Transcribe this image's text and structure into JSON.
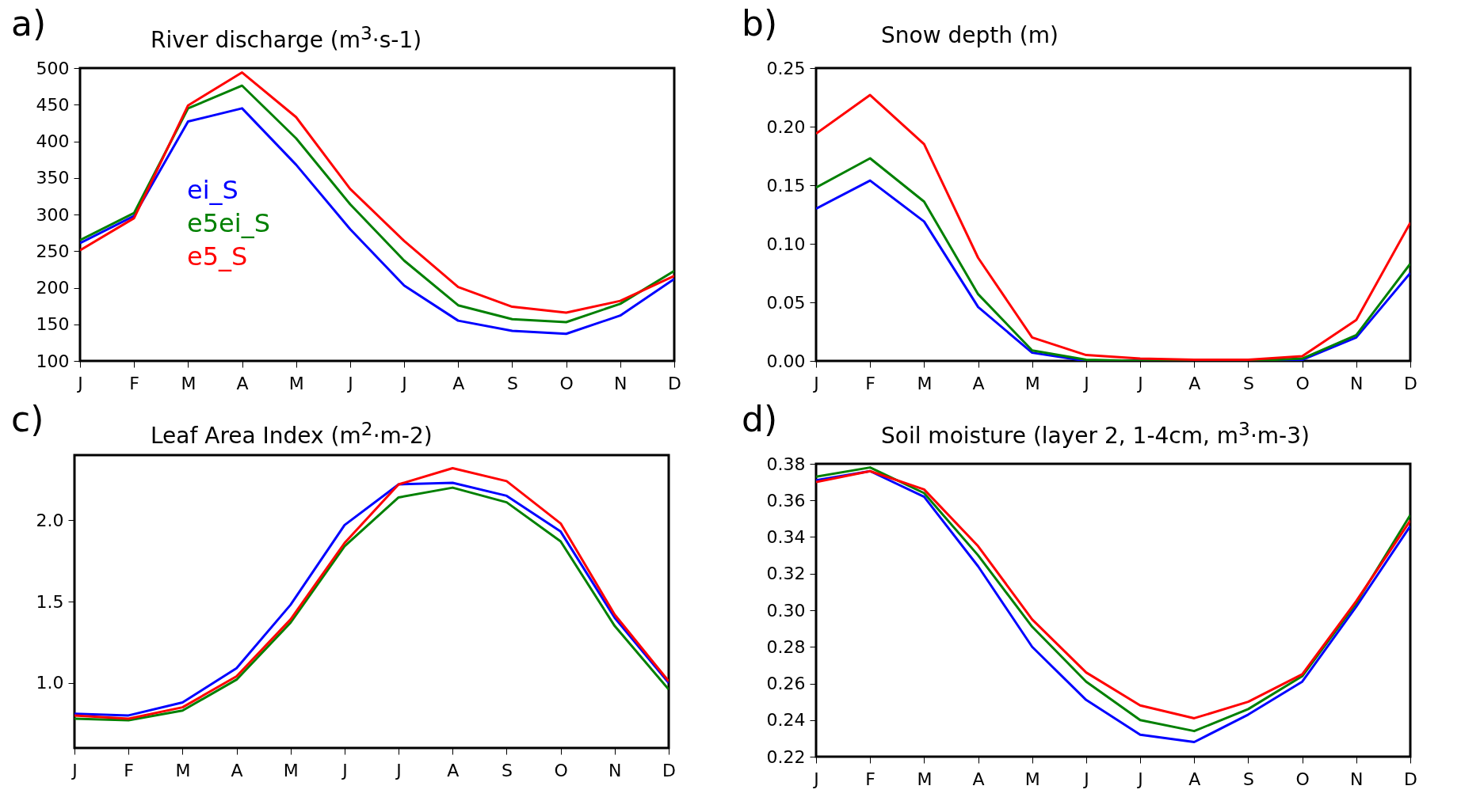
{
  "chart_data": [
    {
      "type": "line",
      "title": "River discharge (m$^{3}$·s-1)",
      "annotations": [
        "a)"
      ],
      "categories": [
        "J",
        "F",
        "M",
        "A",
        "M",
        "J",
        "J",
        "A",
        "S",
        "O",
        "N",
        "D"
      ],
      "ylim": [
        100,
        500
      ],
      "yticks": [
        100,
        150,
        200,
        250,
        300,
        350,
        400,
        450,
        500
      ],
      "legend": "left",
      "grid": false,
      "series": [
        {
          "name": "ei_S",
          "color": "#0000ff",
          "values": [
            261,
            298,
            427,
            445,
            368,
            280,
            203,
            155,
            141,
            137,
            162,
            212
          ]
        },
        {
          "name": "e5ei_S",
          "color": "#008000",
          "values": [
            265,
            302,
            445,
            476,
            404,
            314,
            237,
            176,
            157,
            153,
            178,
            223
          ]
        },
        {
          "name": "e5_S",
          "color": "#ff0000",
          "values": [
            251,
            295,
            449,
            494,
            433,
            335,
            264,
            201,
            174,
            166,
            182,
            216
          ]
        }
      ]
    },
    {
      "type": "line",
      "title": "Snow depth (m)",
      "annotations": [
        "b)"
      ],
      "categories": [
        "J",
        "F",
        "M",
        "A",
        "M",
        "J",
        "J",
        "A",
        "S",
        "O",
        "N",
        "D"
      ],
      "ylim": [
        0,
        0.25
      ],
      "yticks": [
        {
          "value": 0,
          "label": "0.00"
        },
        {
          "value": 0.05,
          "label": "0.05"
        },
        {
          "value": 0.1,
          "label": "0.10"
        },
        {
          "value": 0.15,
          "label": "0.15"
        },
        {
          "value": 0.2,
          "label": "0.20"
        },
        {
          "value": 0.25,
          "label": "0.25"
        }
      ],
      "grid": false,
      "series": [
        {
          "color": "#0000ff",
          "values": [
            0.13,
            0.154,
            0.119,
            0.046,
            0.007,
            0,
            0,
            0,
            0,
            0.001,
            0.02,
            0.075
          ]
        },
        {
          "color": "#008000",
          "values": [
            0.148,
            0.173,
            0.136,
            0.057,
            0.009,
            0.001,
            0,
            0,
            0,
            0.002,
            0.022,
            0.083
          ]
        },
        {
          "color": "#ff0000",
          "values": [
            0.194,
            0.227,
            0.185,
            0.088,
            0.02,
            0.005,
            0.002,
            0.001,
            0.001,
            0.004,
            0.035,
            0.118
          ]
        }
      ]
    },
    {
      "type": "line",
      "title": "Leaf Area Index (m$^{2}$·m-2)",
      "annotations": [
        "c)"
      ],
      "categories": [
        "J",
        "F",
        "M",
        "A",
        "M",
        "J",
        "J",
        "A",
        "S",
        "O",
        "N",
        "D"
      ],
      "ylim": [
        0.6,
        2.4
      ],
      "yticks": [
        {
          "value": 1,
          "label": "1.0"
        },
        {
          "value": 1.5,
          "label": "1.5"
        },
        {
          "value": 2,
          "label": "2.0"
        }
      ],
      "grid": false,
      "series": [
        {
          "color": "#0000ff",
          "values": [
            0.81,
            0.8,
            0.88,
            1.09,
            1.48,
            1.97,
            2.22,
            2.23,
            2.15,
            1.93,
            1.4,
            1.0
          ]
        },
        {
          "color": "#008000",
          "values": [
            0.78,
            0.77,
            0.83,
            1.02,
            1.37,
            1.84,
            2.14,
            2.2,
            2.11,
            1.87,
            1.35,
            0.96
          ]
        },
        {
          "color": "#ff0000",
          "values": [
            0.8,
            0.78,
            0.85,
            1.04,
            1.39,
            1.86,
            2.22,
            2.32,
            2.24,
            1.98,
            1.42,
            1.01
          ]
        }
      ]
    },
    {
      "type": "line",
      "title": "Soil moisture (layer 2, 1-4cm, m$^{3}$·m-3)",
      "annotations": [
        "d)"
      ],
      "categories": [
        "J",
        "F",
        "M",
        "A",
        "M",
        "J",
        "J",
        "A",
        "S",
        "O",
        "N",
        "D"
      ],
      "ylim": [
        0.22,
        0.38
      ],
      "yticks": [
        {
          "value": 0.22,
          "label": "0.22"
        },
        {
          "value": 0.24,
          "label": "0.24"
        },
        {
          "value": 0.26,
          "label": "0.26"
        },
        {
          "value": 0.28,
          "label": "0.28"
        },
        {
          "value": 0.3,
          "label": "0.30"
        },
        {
          "value": 0.32,
          "label": "0.32"
        },
        {
          "value": 0.34,
          "label": "0.34"
        },
        {
          "value": 0.36,
          "label": "0.36"
        },
        {
          "value": 0.38,
          "label": "0.38"
        }
      ],
      "grid": false,
      "series": [
        {
          "color": "#0000ff",
          "values": [
            0.371,
            0.376,
            0.362,
            0.324,
            0.28,
            0.251,
            0.232,
            0.228,
            0.243,
            0.261,
            0.302,
            0.346
          ]
        },
        {
          "color": "#008000",
          "values": [
            0.373,
            0.378,
            0.364,
            0.33,
            0.291,
            0.261,
            0.24,
            0.234,
            0.246,
            0.264,
            0.304,
            0.352
          ]
        },
        {
          "color": "#ff0000",
          "values": [
            0.37,
            0.376,
            0.366,
            0.335,
            0.295,
            0.266,
            0.248,
            0.241,
            0.25,
            0.265,
            0.305,
            0.349
          ]
        }
      ]
    }
  ]
}
